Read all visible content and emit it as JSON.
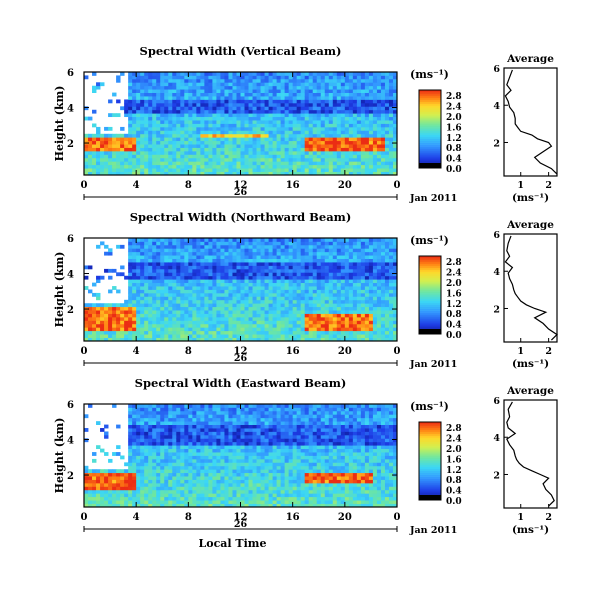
{
  "figure": {
    "xlabel_bottom": "Local Time",
    "date_label": "Jan 2011",
    "day_label": "26",
    "unit_label": "(ms⁻¹)",
    "avg_title": "Average",
    "avg_xlabel": "(ms⁻¹)"
  },
  "chart_data": [
    {
      "type": "heatmap",
      "title": "Spectral Width (Vertical Beam)",
      "xlabel": "",
      "ylabel": "Height (km)",
      "x_ticks": [
        "0",
        "4",
        "8",
        "12",
        "16",
        "20",
        "0"
      ],
      "x_range_hours": [
        0,
        24
      ],
      "y_ticks": [
        "2",
        "4",
        "6"
      ],
      "ylim": [
        0.2,
        6
      ],
      "colorbar": {
        "ticks": [
          "0.0",
          "0.4",
          "0.8",
          "1.2",
          "1.6",
          "2.0",
          "2.4",
          "2.8"
        ],
        "range": [
          0,
          3.0
        ]
      },
      "features": [
        {
          "desc": "high-width layer (red) near 2 km",
          "hours": [
            0,
            4
          ],
          "height_km": [
            1.6,
            2.4
          ],
          "value": 2.8
        },
        {
          "desc": "high-width layer (red) near 2 km",
          "hours": [
            17,
            23
          ],
          "height_km": [
            1.6,
            2.4
          ],
          "value": 2.8
        },
        {
          "desc": "elevated layer near 2.4 km",
          "hours": [
            9,
            14
          ],
          "height_km": [
            2.3,
            2.6
          ],
          "value": 2.4
        },
        {
          "desc": "low-width band (blue) near 4 km",
          "hours": [
            0,
            24
          ],
          "height_km": [
            3.6,
            4.4
          ],
          "value": 0.5
        },
        {
          "desc": "missing data",
          "hours": [
            0,
            3.5
          ],
          "height_km": [
            2.6,
            6
          ],
          "value": null
        }
      ],
      "profile": {
        "title": "Average",
        "xlabel": "(ms⁻¹)",
        "x_ticks": [
          "1",
          "2"
        ],
        "xlim": [
          0.4,
          2.3
        ],
        "y_ticks": [
          "2",
          "4",
          "6"
        ],
        "ylim": [
          0.2,
          6
        ],
        "height_km": [
          0.3,
          0.6,
          0.9,
          1.2,
          1.5,
          1.8,
          2.0,
          2.2,
          2.4,
          2.6,
          2.8,
          3.0,
          3.3,
          3.6,
          3.9,
          4.2,
          4.5,
          4.8,
          5.1,
          5.5,
          5.9
        ],
        "values": [
          2.3,
          2.1,
          1.7,
          1.5,
          1.8,
          2.1,
          2.0,
          1.6,
          1.4,
          1.0,
          0.9,
          0.8,
          0.8,
          0.75,
          0.6,
          0.55,
          0.45,
          0.65,
          0.5,
          0.6,
          0.7
        ]
      }
    },
    {
      "type": "heatmap",
      "title": "Spectral Width (Northward Beam)",
      "xlabel": "",
      "ylabel": "Height (km)",
      "x_ticks": [
        "0",
        "4",
        "8",
        "12",
        "16",
        "20",
        "0"
      ],
      "x_range_hours": [
        0,
        24
      ],
      "y_ticks": [
        "2",
        "4",
        "6"
      ],
      "ylim": [
        0.2,
        6
      ],
      "colorbar": {
        "ticks": [
          "0.0",
          "0.4",
          "0.8",
          "1.2",
          "1.6",
          "2.0",
          "2.4",
          "2.8"
        ],
        "range": [
          0,
          3.0
        ]
      },
      "features": [
        {
          "desc": "high-width layer (red) near 2 km",
          "hours": [
            0,
            4
          ],
          "height_km": [
            0.8,
            2.2
          ],
          "value": 2.8
        },
        {
          "desc": "high-width layer (red) near 2 km",
          "hours": [
            17,
            22
          ],
          "height_km": [
            0.8,
            1.8
          ],
          "value": 2.8
        },
        {
          "desc": "low-width band (blue) near 4 km",
          "hours": [
            0,
            24
          ],
          "height_km": [
            3.6,
            4.6
          ],
          "value": 0.5
        },
        {
          "desc": "missing data",
          "hours": [
            0,
            3.5
          ],
          "height_km": [
            2.3,
            6
          ],
          "value": null
        }
      ],
      "profile": {
        "title": "Average",
        "xlabel": "(ms⁻¹)",
        "x_ticks": [
          "1",
          "2"
        ],
        "xlim": [
          0.4,
          2.3
        ],
        "y_ticks": [
          "2",
          "4",
          "6"
        ],
        "ylim": [
          0.2,
          6
        ],
        "height_km": [
          0.3,
          0.6,
          0.9,
          1.2,
          1.5,
          1.8,
          2.0,
          2.2,
          2.4,
          2.6,
          2.8,
          3.0,
          3.3,
          3.6,
          3.9,
          4.2,
          4.5,
          4.8,
          5.1,
          5.5,
          5.9
        ],
        "values": [
          2.1,
          2.3,
          2.0,
          1.8,
          1.5,
          1.9,
          1.5,
          1.2,
          1.0,
          0.9,
          0.8,
          0.75,
          0.7,
          0.6,
          0.55,
          0.7,
          0.45,
          0.6,
          0.5,
          0.55,
          0.65
        ]
      }
    },
    {
      "type": "heatmap",
      "title": "Spectral Width (Eastward Beam)",
      "xlabel": "Local Time",
      "ylabel": "Height (km)",
      "x_ticks": [
        "0",
        "4",
        "8",
        "12",
        "16",
        "20",
        "0"
      ],
      "x_range_hours": [
        0,
        24
      ],
      "y_ticks": [
        "2",
        "4",
        "6"
      ],
      "ylim": [
        0.2,
        6
      ],
      "colorbar": {
        "ticks": [
          "0.0",
          "0.4",
          "0.8",
          "1.2",
          "1.6",
          "2.0",
          "2.4",
          "2.8"
        ],
        "range": [
          0,
          3.0
        ]
      },
      "features": [
        {
          "desc": "high-width layer (red) near 2 km",
          "hours": [
            0,
            4
          ],
          "height_km": [
            1.2,
            2.2
          ],
          "value": 2.8
        },
        {
          "desc": "high-width layer (red) near 2 km",
          "hours": [
            17,
            22
          ],
          "height_km": [
            1.6,
            2.2
          ],
          "value": 2.8
        },
        {
          "desc": "low-width band (blue) near 4 km",
          "hours": [
            0,
            24
          ],
          "height_km": [
            3.6,
            4.8
          ],
          "value": 0.5
        },
        {
          "desc": "missing data",
          "hours": [
            0,
            3.5
          ],
          "height_km": [
            2.4,
            6
          ],
          "value": null
        }
      ],
      "profile": {
        "title": "Average",
        "xlabel": "(ms⁻¹)",
        "x_ticks": [
          "1",
          "2"
        ],
        "xlim": [
          0.4,
          2.3
        ],
        "y_ticks": [
          "2",
          "4",
          "6"
        ],
        "ylim": [
          0.2,
          6
        ],
        "height_km": [
          0.3,
          0.6,
          0.9,
          1.2,
          1.5,
          1.8,
          2.0,
          2.2,
          2.4,
          2.6,
          2.8,
          3.0,
          3.3,
          3.6,
          3.9,
          4.2,
          4.5,
          4.8,
          5.1,
          5.5,
          5.9
        ],
        "values": [
          2.0,
          2.2,
          2.1,
          1.9,
          1.8,
          2.0,
          1.7,
          1.4,
          1.1,
          0.95,
          0.85,
          0.8,
          0.75,
          0.6,
          0.5,
          0.8,
          0.55,
          0.5,
          0.6,
          0.55,
          0.7
        ]
      }
    }
  ]
}
